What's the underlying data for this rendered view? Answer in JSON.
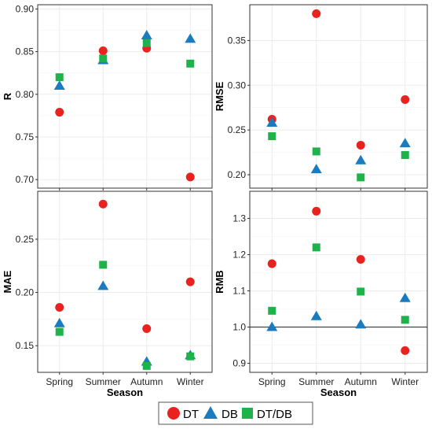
{
  "legend": {
    "series_names": [
      "DT",
      "DB",
      "DT/DB"
    ],
    "series_colors": [
      "#e8221f",
      "#1a7bbf",
      "#1fb24a"
    ],
    "series_shapes": [
      "circle",
      "triangle",
      "square"
    ]
  },
  "chart_data": [
    {
      "type": "scatter",
      "ylabel": "R",
      "xlabel": "",
      "categories": [
        "Spring",
        "Summer",
        "Autumn",
        "Winter"
      ],
      "show_x_tick_labels": false,
      "ylim": [
        0.69,
        0.905
      ],
      "yticks": [
        0.7,
        0.75,
        0.8,
        0.85,
        0.9
      ],
      "ytick_labels": [
        "0.70",
        "0.75",
        "0.80",
        "0.85",
        "0.90"
      ],
      "series": [
        {
          "name": "DT",
          "values": [
            0.779,
            0.851,
            0.854,
            0.703
          ]
        },
        {
          "name": "DB",
          "values": [
            0.81,
            0.84,
            0.869,
            0.865
          ]
        },
        {
          "name": "DT/DB",
          "values": [
            0.82,
            0.842,
            0.86,
            0.836
          ]
        }
      ],
      "grid": true
    },
    {
      "type": "scatter",
      "ylabel": "RMSE",
      "xlabel": "",
      "categories": [
        "Spring",
        "Summer",
        "Autumn",
        "Winter"
      ],
      "show_x_tick_labels": false,
      "ylim": [
        0.185,
        0.39
      ],
      "yticks": [
        0.2,
        0.25,
        0.3,
        0.35
      ],
      "ytick_labels": [
        "0.20",
        "0.25",
        "0.30",
        "0.35"
      ],
      "series": [
        {
          "name": "DT",
          "values": [
            0.262,
            0.38,
            0.233,
            0.284
          ]
        },
        {
          "name": "DB",
          "values": [
            0.258,
            0.206,
            0.216,
            0.235
          ]
        },
        {
          "name": "DT/DB",
          "values": [
            0.243,
            0.226,
            0.197,
            0.222
          ]
        }
      ],
      "grid": true
    },
    {
      "type": "scatter",
      "ylabel": "MAE",
      "xlabel": "Season",
      "categories": [
        "Spring",
        "Summer",
        "Autumn",
        "Winter"
      ],
      "show_x_tick_labels": true,
      "ylim": [
        0.125,
        0.295
      ],
      "yticks": [
        0.15,
        0.2,
        0.25
      ],
      "ytick_labels": [
        "0.15",
        "0.20",
        "0.25"
      ],
      "series": [
        {
          "name": "DT",
          "values": [
            0.186,
            0.283,
            0.166,
            0.21
          ]
        },
        {
          "name": "DB",
          "values": [
            0.171,
            0.206,
            0.135,
            0.141
          ]
        },
        {
          "name": "DT/DB",
          "values": [
            0.163,
            0.226,
            0.131,
            0.14
          ]
        }
      ],
      "grid": true
    },
    {
      "type": "scatter",
      "ylabel": "RMB",
      "xlabel": "Season",
      "categories": [
        "Spring",
        "Summer",
        "Autumn",
        "Winter"
      ],
      "show_x_tick_labels": true,
      "ylim": [
        0.875,
        1.375
      ],
      "yticks": [
        0.9,
        1.0,
        1.1,
        1.2,
        1.3
      ],
      "ytick_labels": [
        "0.9",
        "1.0",
        "1.1",
        "1.2",
        "1.3"
      ],
      "reference_line": 1.0,
      "series": [
        {
          "name": "DT",
          "values": [
            1.175,
            1.32,
            1.187,
            0.935
          ]
        },
        {
          "name": "DB",
          "values": [
            1.0,
            1.03,
            1.007,
            1.08
          ]
        },
        {
          "name": "DT/DB",
          "values": [
            1.045,
            1.22,
            1.098,
            1.02
          ]
        }
      ],
      "grid": true
    }
  ]
}
